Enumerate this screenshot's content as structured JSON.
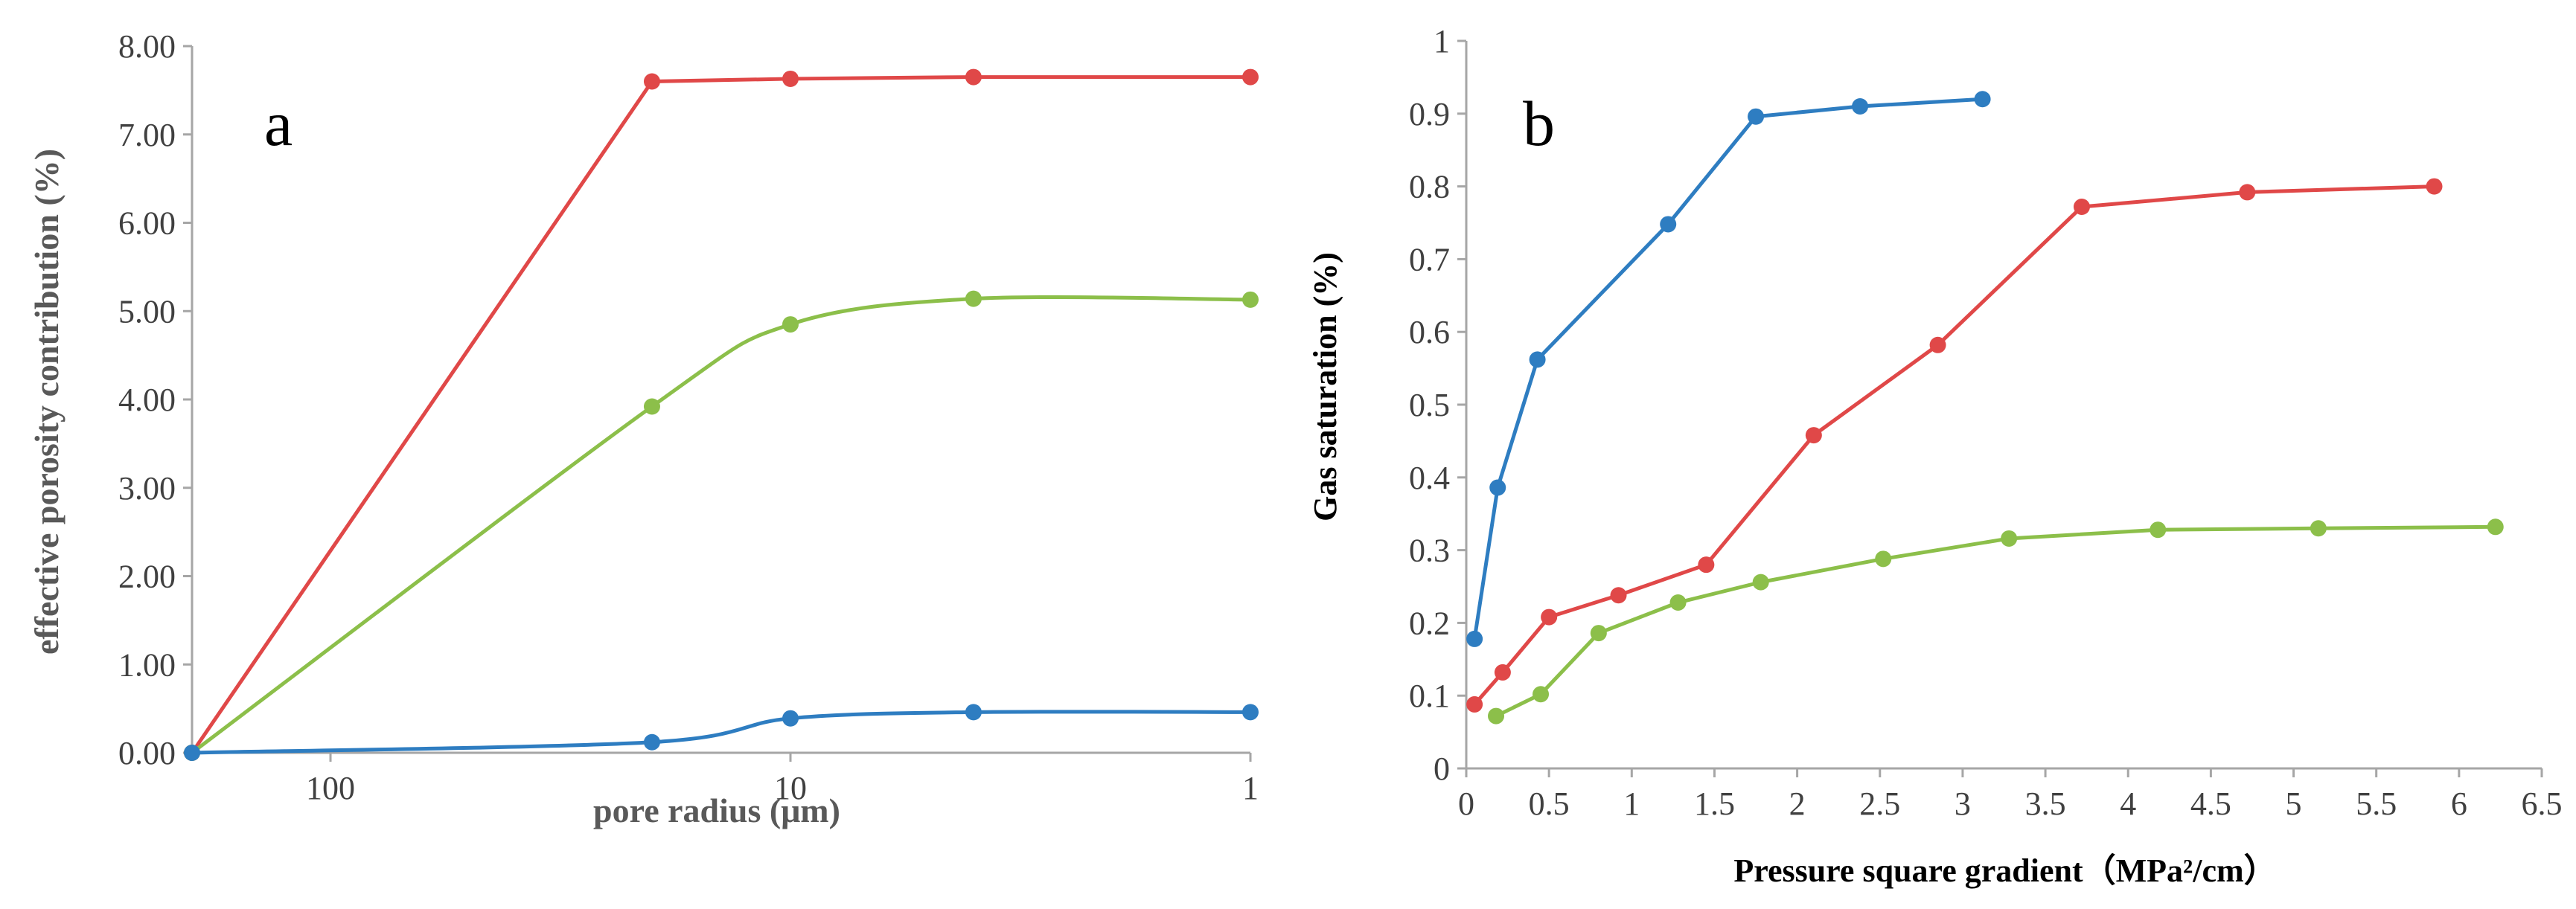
{
  "chart_data": [
    {
      "type": "line",
      "panel_label": "a",
      "xlabel": "pore radius (μm)",
      "ylabel": "effective porosity contribution (%)",
      "x_scale": "log-reversed",
      "xlim": [
        1,
        200
      ],
      "ylim": [
        0,
        8
      ],
      "x_ticks": [
        100,
        10,
        1
      ],
      "x_tick_labels": [
        "100",
        "10",
        "1"
      ],
      "y_ticks": [
        0,
        1,
        2,
        3,
        4,
        5,
        6,
        7,
        8
      ],
      "y_tick_labels": [
        "0.00",
        "1.00",
        "2.00",
        "3.00",
        "4.00",
        "5.00",
        "6.00",
        "7.00",
        "8.00"
      ],
      "grid": false,
      "series": [
        {
          "color": "#e04848",
          "smooth": false,
          "x": [
            200,
            20,
            10,
            4,
            1
          ],
          "y": [
            0.0,
            7.6,
            7.63,
            7.65,
            7.65
          ]
        },
        {
          "color": "#8cbf4a",
          "smooth": true,
          "x": [
            200,
            20,
            10,
            4,
            1
          ],
          "y": [
            0.0,
            3.92,
            4.85,
            5.14,
            5.13
          ]
        },
        {
          "color": "#2e7dc1",
          "smooth": true,
          "x": [
            200,
            20,
            10,
            4,
            1
          ],
          "y": [
            0.0,
            0.12,
            0.39,
            0.46,
            0.46
          ]
        }
      ]
    },
    {
      "type": "line",
      "panel_label": "b",
      "xlabel": "Pressure square gradient（MPa²/cm）",
      "ylabel": "Gas saturation (%)",
      "xlim": [
        0,
        6.5
      ],
      "ylim": [
        0,
        1
      ],
      "x_ticks": [
        0,
        0.5,
        1,
        1.5,
        2,
        2.5,
        3,
        3.5,
        4,
        4.5,
        5,
        5.5,
        6,
        6.5
      ],
      "x_tick_labels": [
        "0",
        "0.5",
        "1",
        "1.5",
        "2",
        "2.5",
        "3",
        "3.5",
        "4",
        "4.5",
        "5",
        "5.5",
        "6",
        "6.5"
      ],
      "y_ticks": [
        0,
        0.1,
        0.2,
        0.3,
        0.4,
        0.5,
        0.6,
        0.7,
        0.8,
        0.9,
        1
      ],
      "y_tick_labels": [
        "0",
        "0.1",
        "0.2",
        "0.3",
        "0.4",
        "0.5",
        "0.6",
        "0.7",
        "0.8",
        "0.9",
        "1"
      ],
      "grid": false,
      "series": [
        {
          "color": "#2e7dc1",
          "smooth": false,
          "x": [
            0.05,
            0.19,
            0.43,
            1.22,
            1.75,
            2.38,
            3.12
          ],
          "y": [
            0.178,
            0.386,
            0.562,
            0.748,
            0.896,
            0.91,
            0.92
          ]
        },
        {
          "color": "#e04848",
          "smooth": false,
          "x": [
            0.05,
            0.22,
            0.5,
            0.92,
            1.45,
            2.1,
            2.85,
            3.72,
            4.72,
            5.85
          ],
          "y": [
            0.088,
            0.132,
            0.208,
            0.238,
            0.28,
            0.458,
            0.582,
            0.772,
            0.792,
            0.8
          ],
          "note": ""
        },
        {
          "color": "#8cbf4a",
          "smooth": false,
          "x": [
            0.18,
            0.45,
            0.8,
            1.28,
            1.78,
            2.52,
            3.28,
            4.18,
            5.15,
            6.22
          ],
          "y": [
            0.072,
            0.102,
            0.186,
            0.228,
            0.256,
            0.288,
            0.316,
            0.328,
            0.33,
            0.332
          ]
        }
      ]
    }
  ]
}
